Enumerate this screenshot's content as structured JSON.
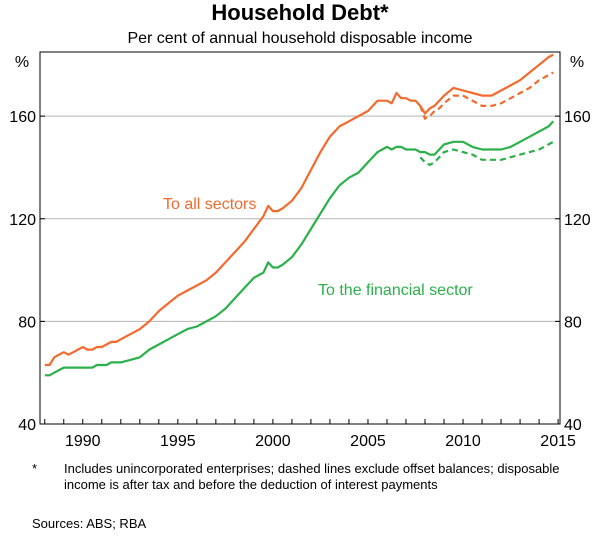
{
  "title": "Household Debt*",
  "subtitle": "Per cent of annual household disposable income",
  "footnote": {
    "marker": "*",
    "text": "Includes unincorporated enterprises; dashed lines exclude offset balances; disposable income is after tax and before the deduction of interest payments"
  },
  "sources": "Sources:   ABS; RBA",
  "colors": {
    "all_sectors": "#f26a2e",
    "financial_sector": "#2bb04a",
    "grid": "#b5b5b5",
    "frame": "#000000"
  },
  "chart_data": {
    "type": "line",
    "ylabel_left": "%",
    "ylabel_right": "%",
    "ylim": [
      40,
      185
    ],
    "xlim": [
      1987.75,
      2015.1
    ],
    "yticks": [
      40,
      80,
      120,
      160
    ],
    "xticks": [
      1990,
      1995,
      2000,
      2005,
      2010,
      2015
    ],
    "grid": true,
    "annotations": [
      {
        "text": "To all sectors",
        "series": "To all sectors"
      },
      {
        "text": "To the financial sector",
        "series": "To the financial sector"
      }
    ],
    "series": [
      {
        "name": "To all sectors",
        "style": "solid",
        "x": [
          1988,
          1988.25,
          1988.5,
          1988.75,
          1989,
          1989.25,
          1989.5,
          1989.75,
          1990,
          1990.25,
          1990.5,
          1990.75,
          1991,
          1991.25,
          1991.5,
          1991.75,
          1992,
          1992.5,
          1993,
          1993.5,
          1994,
          1994.5,
          1995,
          1995.5,
          1996,
          1996.5,
          1997,
          1997.5,
          1998,
          1998.5,
          1999,
          1999.5,
          1999.75,
          2000,
          2000.25,
          2000.5,
          2001,
          2001.5,
          2002,
          2002.5,
          2003,
          2003.5,
          2004,
          2004.5,
          2005,
          2005.5,
          2006,
          2006.25,
          2006.5,
          2006.75,
          2007,
          2007.25,
          2007.5,
          2007.75,
          2008,
          2008.25,
          2008.5,
          2008.75,
          2009,
          2009.5,
          2010,
          2010.5,
          2011,
          2011.5,
          2012,
          2012.5,
          2013,
          2013.5,
          2014,
          2014.5,
          2014.75
        ],
        "values": [
          63,
          63,
          66,
          67,
          68,
          67,
          68,
          69,
          70,
          69,
          69,
          70,
          70,
          71,
          72,
          72,
          73,
          75,
          77,
          80,
          84,
          87,
          90,
          92,
          94,
          96,
          99,
          103,
          107,
          111,
          116,
          121,
          125,
          123,
          123,
          124,
          127,
          132,
          139,
          146,
          152,
          156,
          158,
          160,
          162,
          166,
          166,
          165,
          169,
          167,
          167,
          166,
          166,
          164,
          161,
          163,
          164,
          166,
          168,
          171,
          170,
          169,
          168,
          168,
          170,
          172,
          174,
          177,
          180,
          183,
          184
        ]
      },
      {
        "name": "To all sectors",
        "style": "dashed",
        "x": [
          2007.75,
          2008,
          2008.25,
          2008.5,
          2008.75,
          2009,
          2009.5,
          2010,
          2010.5,
          2011,
          2011.5,
          2012,
          2012.5,
          2013,
          2013.5,
          2014,
          2014.5,
          2014.75
        ],
        "values": [
          164,
          159,
          160,
          162,
          163,
          165,
          168,
          168,
          166,
          164,
          164,
          165,
          167,
          169,
          171,
          174,
          176,
          177
        ]
      },
      {
        "name": "To the financial sector",
        "style": "solid",
        "x": [
          1988,
          1988.25,
          1988.5,
          1988.75,
          1989,
          1989.25,
          1989.5,
          1989.75,
          1990,
          1990.25,
          1990.5,
          1990.75,
          1991,
          1991.25,
          1991.5,
          1991.75,
          1992,
          1992.5,
          1993,
          1993.5,
          1994,
          1994.5,
          1995,
          1995.5,
          1996,
          1996.5,
          1997,
          1997.5,
          1998,
          1998.5,
          1999,
          1999.5,
          1999.75,
          2000,
          2000.25,
          2000.5,
          2001,
          2001.5,
          2002,
          2002.5,
          2003,
          2003.5,
          2004,
          2004.5,
          2005,
          2005.5,
          2006,
          2006.25,
          2006.5,
          2006.75,
          2007,
          2007.25,
          2007.5,
          2007.75,
          2008,
          2008.25,
          2008.5,
          2008.75,
          2009,
          2009.5,
          2010,
          2010.5,
          2011,
          2011.5,
          2012,
          2012.5,
          2013,
          2013.5,
          2014,
          2014.5,
          2014.75
        ],
        "values": [
          59,
          59,
          60,
          61,
          62,
          62,
          62,
          62,
          62,
          62,
          62,
          63,
          63,
          63,
          64,
          64,
          64,
          65,
          66,
          69,
          71,
          73,
          75,
          77,
          78,
          80,
          82,
          85,
          89,
          93,
          97,
          99,
          103,
          101,
          101,
          102,
          105,
          110,
          116,
          122,
          128,
          133,
          136,
          138,
          142,
          146,
          148,
          147,
          148,
          148,
          147,
          147,
          147,
          146,
          146,
          145,
          145,
          147,
          149,
          150,
          150,
          148,
          147,
          147,
          147,
          148,
          150,
          152,
          154,
          156,
          158
        ]
      },
      {
        "name": "To the financial sector",
        "style": "dashed",
        "x": [
          2007.75,
          2008,
          2008.25,
          2008.5,
          2008.75,
          2009,
          2009.5,
          2010,
          2010.5,
          2011,
          2011.5,
          2012,
          2012.5,
          2013,
          2013.5,
          2014,
          2014.5,
          2014.75
        ],
        "values": [
          144,
          142,
          141,
          142,
          144,
          146,
          147,
          146,
          145,
          143,
          143,
          143,
          144,
          145,
          146,
          147,
          149,
          150
        ]
      }
    ]
  }
}
